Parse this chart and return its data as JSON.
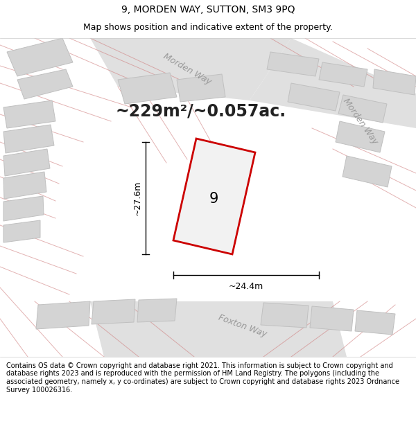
{
  "title_line1": "9, MORDEN WAY, SUTTON, SM3 9PQ",
  "title_line2": "Map shows position and indicative extent of the property.",
  "area_text": "~229m²/~0.057ac.",
  "label_number": "9",
  "dim_vertical": "~27.6m",
  "dim_horizontal": "~24.4m",
  "street_label_top": "Morden Way",
  "street_label_right": "Morden Way",
  "street_label_bottom": "Foxton Way",
  "footer_text": "Contains OS data © Crown copyright and database right 2021. This information is subject to Crown copyright and database rights 2023 and is reproduced with the permission of HM Land Registry. The polygons (including the associated geometry, namely x, y co-ordinates) are subject to Crown copyright and database rights 2023 Ordnance Survey 100026316.",
  "map_bg": "#e8e8e8",
  "building_fill": "#d4d4d4",
  "building_edge": "#c0c0c0",
  "road_fill": "#ebebeb",
  "plot_fill": "#f2f2f2",
  "plot_edge": "#cc0000",
  "faint_line_color": "#d08080",
  "title_fontsize": 10,
  "subtitle_fontsize": 9,
  "area_fontsize": 17,
  "label_fontsize": 15,
  "dim_fontsize": 9,
  "street_fontsize": 9,
  "footer_fontsize": 7
}
